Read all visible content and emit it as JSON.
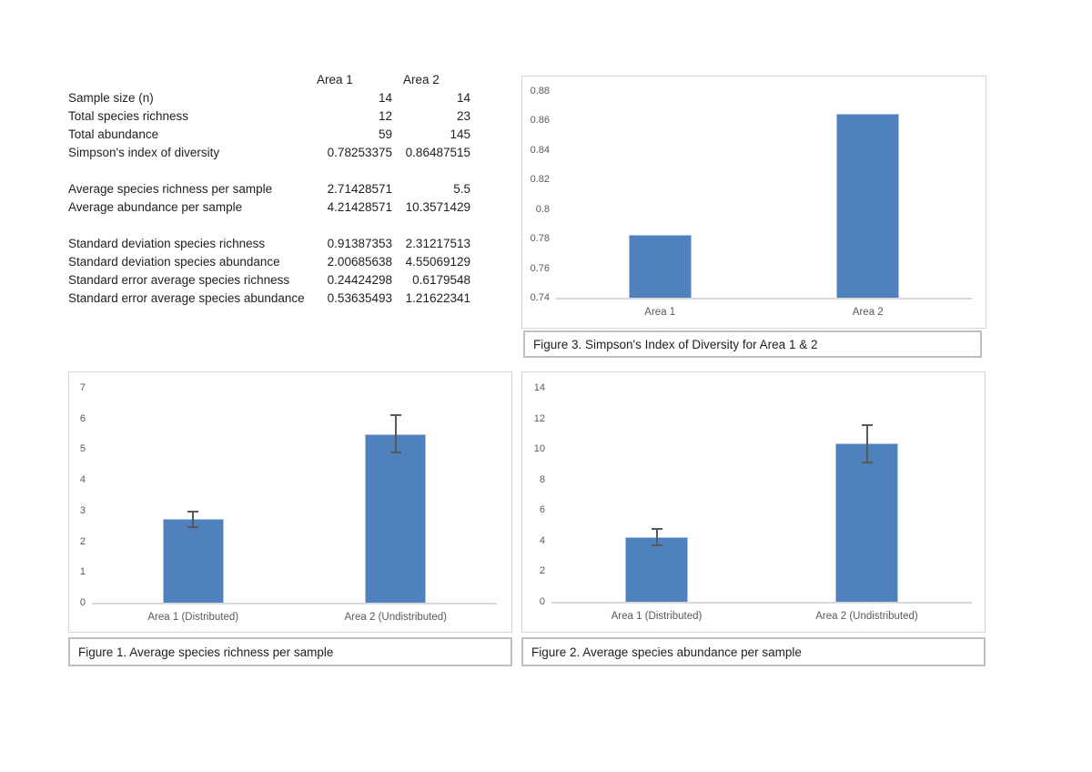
{
  "page": {
    "background": "#ffffff"
  },
  "colors": {
    "bar": "#4F81BD",
    "bar_edge": "#A9C1DE",
    "axis_line": "#D9D9D9",
    "tick_text": "#595959",
    "category_text": "#595959",
    "error_bar": "#595959",
    "chart_border": "#D6D6D6",
    "caption_border": "#BFBFBF",
    "table_text": "#1f1f1f"
  },
  "table": {
    "col_headers": [
      "Area 1",
      "Area 2"
    ],
    "rows": [
      {
        "label": "Sample size (n)",
        "area1": "14",
        "area2": "14"
      },
      {
        "label": "Total species richness",
        "area1": "12",
        "area2": "23"
      },
      {
        "label": "Total abundance",
        "area1": "59",
        "area2": "145"
      },
      {
        "label": "Simpson's index of diversity",
        "area1": "0.78253375",
        "area2": "0.86487515"
      },
      {
        "label": "",
        "area1": "",
        "area2": ""
      },
      {
        "label": "Average species richness per sample",
        "area1": "2.71428571",
        "area2": "5.5"
      },
      {
        "label": "Average abundance per sample",
        "area1": "4.21428571",
        "area2": "10.3571429"
      },
      {
        "label": "",
        "area1": "",
        "area2": ""
      },
      {
        "label": "Standard deviation species richness",
        "area1": "0.91387353",
        "area2": "2.31217513"
      },
      {
        "label": "Standard deviation species abundance",
        "area1": "2.00685638",
        "area2": "4.55069129"
      },
      {
        "label": "Standard error average species richness",
        "area1": "0.24424298",
        "area2": "0.6179548"
      },
      {
        "label": "Standard error average species abundance",
        "area1": "0.53635493",
        "area2": "1.21622341"
      }
    ]
  },
  "chart_data": [
    {
      "id": "figure1",
      "type": "bar",
      "title": "Figure 1. Average species richness per sample",
      "categories": [
        "Area 1 (Distributed)",
        "Area 2 (Undistributed)"
      ],
      "values": [
        2.71428571,
        5.5
      ],
      "errors": [
        0.24424298,
        0.6179548
      ],
      "ylim": [
        0,
        7
      ],
      "ystep": 1,
      "grid": false,
      "legend": "none",
      "xlabel": "",
      "ylabel": ""
    },
    {
      "id": "figure2",
      "type": "bar",
      "title": "Figure 2. Average species abundance per sample",
      "categories": [
        "Area 1 (Distributed)",
        "Area 2 (Undistributed)"
      ],
      "values": [
        4.21428571,
        10.3571429
      ],
      "errors": [
        0.53635493,
        1.21622341
      ],
      "ylim": [
        0,
        14
      ],
      "ystep": 2,
      "grid": false,
      "legend": "none",
      "xlabel": "",
      "ylabel": ""
    },
    {
      "id": "figure3",
      "type": "bar",
      "title": "Figure 3. Simpson's Index of Diversity for Area 1 & 2",
      "categories": [
        "Area 1",
        "Area 2"
      ],
      "values": [
        0.78253375,
        0.86487515
      ],
      "errors": null,
      "ylim": [
        0.74,
        0.88
      ],
      "ystep": 0.02,
      "grid": false,
      "legend": "none",
      "xlabel": "",
      "ylabel": ""
    }
  ]
}
